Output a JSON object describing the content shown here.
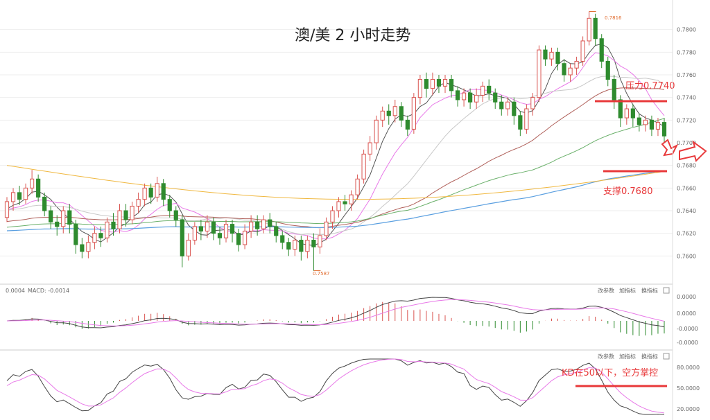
{
  "chart_data": {
    "type": "candlestick",
    "title": "澳/美 2 小时走势",
    "price_axis": {
      "ticks": [
        "0.7800",
        "0.7780",
        "0.7760",
        "0.7740",
        "0.7720",
        "0.7700",
        "0.7680",
        "0.7660",
        "0.7640",
        "0.7620",
        "0.7600"
      ],
      "range": [
        0.758,
        0.782
      ]
    },
    "high_mark": "0.7816",
    "low_mark": "0.7587",
    "annotations": {
      "resistance": "压力0.7740",
      "support": "支撑0.7680",
      "kd_note": "KD在50以下，空方掌控"
    },
    "macd_panel": {
      "label_left": "0.0004",
      "label_macd": "MACD: -0.0014",
      "buttons": [
        "改参数",
        "加指标",
        "换指标"
      ],
      "ticks": [
        "0.0000",
        "0.0000",
        "-0.0000",
        "-0.0000"
      ]
    },
    "kd_panel": {
      "buttons": [
        "改参数",
        "加指标",
        "换指标"
      ],
      "ticks": [
        "80.0000",
        "50.0000",
        "20.0000"
      ]
    },
    "colors": {
      "up": "#d9534f",
      "down": "#2e8b2e",
      "ma_gray": "#9a9a9a",
      "ma_pink": "#e879e8",
      "ma_brown": "#b0605a",
      "ma_green": "#6ab06a",
      "ma_blue": "#5a9fe0",
      "ma_orange": "#f0b840",
      "annotation": "#e8383a"
    },
    "candles": [
      [
        0.7634,
        0.7648,
        0.763,
        0.7652
      ],
      [
        0.7648,
        0.7656,
        0.764,
        0.766
      ],
      [
        0.7656,
        0.765,
        0.7645,
        0.7662
      ],
      [
        0.765,
        0.766,
        0.7646,
        0.7664
      ],
      [
        0.766,
        0.7668,
        0.7655,
        0.7676
      ],
      [
        0.7668,
        0.7652,
        0.7648,
        0.7672
      ],
      [
        0.7652,
        0.764,
        0.7635,
        0.7656
      ],
      [
        0.764,
        0.763,
        0.7624,
        0.7644
      ],
      [
        0.763,
        0.7626,
        0.7618,
        0.7636
      ],
      [
        0.7626,
        0.764,
        0.762,
        0.7644
      ],
      [
        0.764,
        0.7628,
        0.762,
        0.7646
      ],
      [
        0.7628,
        0.761,
        0.7602,
        0.7632
      ],
      [
        0.761,
        0.7604,
        0.7598,
        0.7616
      ],
      [
        0.7604,
        0.7612,
        0.7598,
        0.7618
      ],
      [
        0.7612,
        0.762,
        0.7606,
        0.7626
      ],
      [
        0.762,
        0.7616,
        0.7608,
        0.7626
      ],
      [
        0.7616,
        0.763,
        0.7612,
        0.7634
      ],
      [
        0.763,
        0.7624,
        0.7618,
        0.7638
      ],
      [
        0.7624,
        0.764,
        0.762,
        0.7646
      ],
      [
        0.764,
        0.7632,
        0.7626,
        0.7646
      ],
      [
        0.7632,
        0.7644,
        0.7628,
        0.7648
      ],
      [
        0.7644,
        0.765,
        0.7638,
        0.7656
      ],
      [
        0.765,
        0.766,
        0.7644,
        0.7664
      ],
      [
        0.766,
        0.7652,
        0.7646,
        0.7664
      ],
      [
        0.7652,
        0.7664,
        0.7648,
        0.767
      ],
      [
        0.7664,
        0.765,
        0.7644,
        0.7668
      ],
      [
        0.765,
        0.764,
        0.7634,
        0.7654
      ],
      [
        0.764,
        0.7632,
        0.7626,
        0.7644
      ],
      [
        0.7632,
        0.76,
        0.759,
        0.7636
      ],
      [
        0.76,
        0.7614,
        0.7596,
        0.762
      ],
      [
        0.7614,
        0.7626,
        0.761,
        0.763
      ],
      [
        0.7626,
        0.7622,
        0.7614,
        0.7632
      ],
      [
        0.7622,
        0.763,
        0.7616,
        0.7636
      ],
      [
        0.763,
        0.762,
        0.7614,
        0.7634
      ],
      [
        0.762,
        0.7616,
        0.761,
        0.7626
      ],
      [
        0.7616,
        0.7628,
        0.7612,
        0.7632
      ],
      [
        0.7628,
        0.762,
        0.7612,
        0.7632
      ],
      [
        0.762,
        0.761,
        0.7604,
        0.7624
      ],
      [
        0.761,
        0.7622,
        0.7606,
        0.7628
      ],
      [
        0.7622,
        0.763,
        0.7616,
        0.7636
      ],
      [
        0.763,
        0.7624,
        0.7618,
        0.7636
      ],
      [
        0.7624,
        0.7632,
        0.762,
        0.7636
      ],
      [
        0.7632,
        0.7626,
        0.762,
        0.7638
      ],
      [
        0.7626,
        0.7618,
        0.7612,
        0.763
      ],
      [
        0.7618,
        0.7612,
        0.7606,
        0.7622
      ],
      [
        0.7612,
        0.7606,
        0.76,
        0.7616
      ],
      [
        0.7606,
        0.7614,
        0.76,
        0.7618
      ],
      [
        0.7614,
        0.7604,
        0.7596,
        0.7618
      ],
      [
        0.7604,
        0.7614,
        0.7598,
        0.7618
      ],
      [
        0.7614,
        0.7608,
        0.7587,
        0.762
      ],
      [
        0.7608,
        0.7618,
        0.7602,
        0.7624
      ],
      [
        0.7618,
        0.763,
        0.7614,
        0.7634
      ],
      [
        0.763,
        0.764,
        0.7624,
        0.7644
      ],
      [
        0.764,
        0.7648,
        0.7634,
        0.7652
      ],
      [
        0.7648,
        0.7646,
        0.764,
        0.7654
      ],
      [
        0.7646,
        0.7654,
        0.764,
        0.7658
      ],
      [
        0.7654,
        0.7668,
        0.765,
        0.7672
      ],
      [
        0.7668,
        0.769,
        0.7664,
        0.7694
      ],
      [
        0.769,
        0.77,
        0.7684,
        0.7706
      ],
      [
        0.77,
        0.772,
        0.7694,
        0.7724
      ],
      [
        0.772,
        0.7728,
        0.7714,
        0.7732
      ],
      [
        0.7728,
        0.7724,
        0.7716,
        0.7734
      ],
      [
        0.7724,
        0.7732,
        0.7718,
        0.7738
      ],
      [
        0.7732,
        0.772,
        0.7714,
        0.7736
      ],
      [
        0.772,
        0.7712,
        0.7706,
        0.7724
      ],
      [
        0.7712,
        0.774,
        0.7708,
        0.7744
      ],
      [
        0.774,
        0.7756,
        0.7734,
        0.776
      ],
      [
        0.7756,
        0.7748,
        0.774,
        0.7762
      ],
      [
        0.7748,
        0.7756,
        0.7742,
        0.7762
      ],
      [
        0.7756,
        0.775,
        0.7744,
        0.776
      ],
      [
        0.775,
        0.7756,
        0.7744,
        0.776
      ],
      [
        0.7756,
        0.7746,
        0.774,
        0.776
      ],
      [
        0.7746,
        0.7738,
        0.7732,
        0.775
      ],
      [
        0.7738,
        0.7744,
        0.7732,
        0.7748
      ],
      [
        0.7744,
        0.7736,
        0.773,
        0.7748
      ],
      [
        0.7736,
        0.7742,
        0.773,
        0.7748
      ],
      [
        0.7742,
        0.775,
        0.7736,
        0.7754
      ],
      [
        0.775,
        0.7744,
        0.7738,
        0.7756
      ],
      [
        0.7744,
        0.7736,
        0.773,
        0.7748
      ],
      [
        0.7736,
        0.773,
        0.7724,
        0.7742
      ],
      [
        0.773,
        0.7736,
        0.7724,
        0.774
      ],
      [
        0.7736,
        0.7724,
        0.7716,
        0.774
      ],
      [
        0.7724,
        0.7712,
        0.7706,
        0.7728
      ],
      [
        0.7712,
        0.773,
        0.7708,
        0.7734
      ],
      [
        0.773,
        0.774,
        0.7724,
        0.7744
      ],
      [
        0.774,
        0.7782,
        0.7736,
        0.7786
      ],
      [
        0.7782,
        0.7774,
        0.7768,
        0.7786
      ],
      [
        0.7774,
        0.778,
        0.7768,
        0.7784
      ],
      [
        0.778,
        0.777,
        0.7764,
        0.7784
      ],
      [
        0.777,
        0.776,
        0.7754,
        0.7774
      ],
      [
        0.776,
        0.7766,
        0.7754,
        0.777
      ],
      [
        0.7766,
        0.7772,
        0.776,
        0.7776
      ],
      [
        0.7772,
        0.779,
        0.7768,
        0.7794
      ],
      [
        0.779,
        0.781,
        0.7786,
        0.7816
      ],
      [
        0.781,
        0.7792,
        0.7786,
        0.7814
      ],
      [
        0.7792,
        0.7772,
        0.7766,
        0.7796
      ],
      [
        0.7772,
        0.7756,
        0.775,
        0.7776
      ],
      [
        0.7756,
        0.7738,
        0.773,
        0.776
      ],
      [
        0.7738,
        0.7722,
        0.7714,
        0.7742
      ],
      [
        0.7722,
        0.773,
        0.7716,
        0.7734
      ],
      [
        0.773,
        0.7722,
        0.7714,
        0.7734
      ],
      [
        0.7722,
        0.7716,
        0.771,
        0.7726
      ],
      [
        0.7716,
        0.772,
        0.771,
        0.7724
      ],
      [
        0.772,
        0.7712,
        0.7706,
        0.7724
      ],
      [
        0.7712,
        0.7718,
        0.7706,
        0.7722
      ],
      [
        0.7718,
        0.7706,
        0.77,
        0.7722
      ]
    ]
  }
}
